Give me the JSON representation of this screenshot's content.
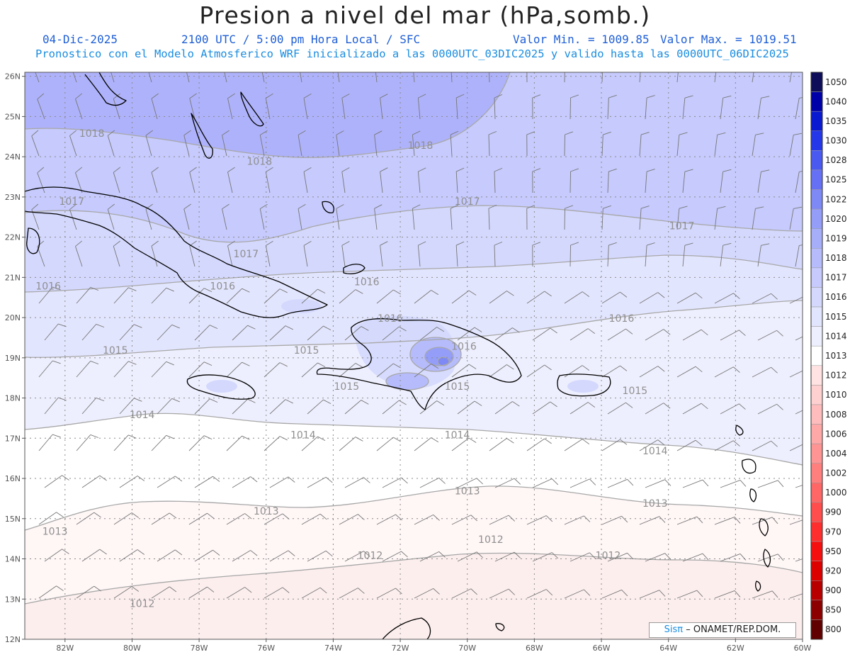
{
  "header": {
    "title": "Presion a nivel del mar (hPa,somb.)",
    "date": "04-Dic-2025",
    "time": "2100 UTC / 5:00 pm Hora Local / SFC",
    "min_label": "Valor Min. = 1009.85",
    "max_label": "Valor Max. = 1019.51",
    "forecast_line": "Pronostico con el Modelo Atmosferico WRF inicializado a las 0000UTC_03DIC2025 y valido hasta las 0000UTC_06DIC2025"
  },
  "map": {
    "lat_ticks": [
      "26N",
      "25N",
      "24N",
      "23N",
      "22N",
      "21N",
      "20N",
      "19N",
      "18N",
      "17N",
      "16N",
      "15N",
      "14N",
      "13N",
      "12N"
    ],
    "lon_ticks": [
      "82W",
      "80W",
      "78W",
      "76W",
      "74W",
      "72W",
      "70W",
      "68W",
      "66W",
      "64W",
      "62W",
      "60W"
    ],
    "contour_labels": [
      {
        "text": "1018",
        "lon": -81.2,
        "lat": 24.5
      },
      {
        "text": "1018",
        "lon": -76.2,
        "lat": 23.8
      },
      {
        "text": "1018",
        "lon": -71.4,
        "lat": 24.2
      },
      {
        "text": "1017",
        "lon": -81.8,
        "lat": 22.8
      },
      {
        "text": "1017",
        "lon": -76.6,
        "lat": 21.5
      },
      {
        "text": "1017",
        "lon": -70.0,
        "lat": 22.8
      },
      {
        "text": "1017",
        "lon": -63.6,
        "lat": 22.2
      },
      {
        "text": "1016",
        "lon": -82.5,
        "lat": 20.7
      },
      {
        "text": "1016",
        "lon": -77.3,
        "lat": 20.7
      },
      {
        "text": "1016",
        "lon": -73.0,
        "lat": 20.8
      },
      {
        "text": "1016",
        "lon": -72.3,
        "lat": 19.9
      },
      {
        "text": "1016",
        "lon": -70.1,
        "lat": 19.2
      },
      {
        "text": "1016",
        "lon": -65.4,
        "lat": 19.9
      },
      {
        "text": "1015",
        "lon": -80.5,
        "lat": 19.1
      },
      {
        "text": "1015",
        "lon": -74.8,
        "lat": 19.1
      },
      {
        "text": "1015",
        "lon": -73.6,
        "lat": 18.2
      },
      {
        "text": "1015",
        "lon": -70.3,
        "lat": 18.2
      },
      {
        "text": "1015",
        "lon": -65.0,
        "lat": 18.1
      },
      {
        "text": "1014",
        "lon": -79.7,
        "lat": 17.5
      },
      {
        "text": "1014",
        "lon": -74.9,
        "lat": 17.0
      },
      {
        "text": "1014",
        "lon": -70.3,
        "lat": 17.0
      },
      {
        "text": "1014",
        "lon": -64.4,
        "lat": 16.6
      },
      {
        "text": "1013",
        "lon": -82.3,
        "lat": 14.6
      },
      {
        "text": "1013",
        "lon": -76.0,
        "lat": 15.1
      },
      {
        "text": "1013",
        "lon": -70.0,
        "lat": 15.6
      },
      {
        "text": "1013",
        "lon": -64.4,
        "lat": 15.3
      },
      {
        "text": "1012",
        "lon": -72.9,
        "lat": 14.0
      },
      {
        "text": "1012",
        "lon": -69.3,
        "lat": 14.4
      },
      {
        "text": "1012",
        "lon": -65.8,
        "lat": 14.0
      },
      {
        "text": "1012",
        "lon": -79.7,
        "lat": 12.8
      }
    ]
  },
  "colorbar": {
    "levels": [
      "1050",
      "1040",
      "1035",
      "1030",
      "1028",
      "1025",
      "1022",
      "1020",
      "1019",
      "1018",
      "1017",
      "1016",
      "1015",
      "1014",
      "1013",
      "1012",
      "1010",
      "1008",
      "1006",
      "1004",
      "1002",
      "1000",
      "990",
      "970",
      "950",
      "920",
      "900",
      "850",
      "800"
    ],
    "colors": [
      "#0d0d5a",
      "#0000a8",
      "#0a1ad0",
      "#2438ea",
      "#4a5af0",
      "#6670f4",
      "#7f89f6",
      "#949ef8",
      "#a6aefa",
      "#b6bcfb",
      "#c6cafc",
      "#d4d8fd",
      "#e2e5fe",
      "#eeeffe",
      "#ffffff",
      "#ffe2e2",
      "#ffd0d0",
      "#ffbcbc",
      "#ffa8a8",
      "#ff9494",
      "#ff7e7e",
      "#ff6666",
      "#ff4c4c",
      "#ff2e2e",
      "#f50f0f",
      "#dc0000",
      "#b80000",
      "#8c0000",
      "#600000"
    ]
  },
  "credit": {
    "brand": "Sisπ",
    "text": "– ONAMET/REP.DOM."
  }
}
